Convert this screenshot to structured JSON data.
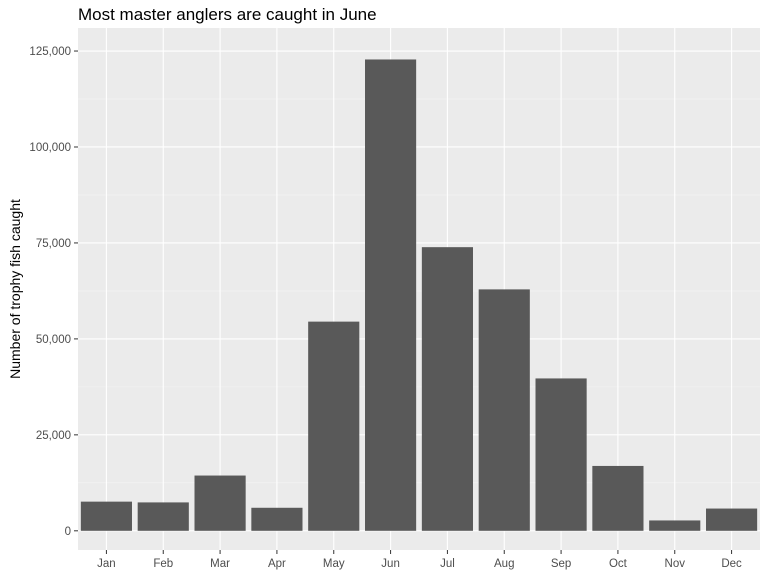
{
  "chart_data": {
    "type": "bar",
    "title": "Most master anglers are caught in June",
    "xlabel": "",
    "ylabel": "Number of trophy fish caught",
    "categories": [
      "Jan",
      "Feb",
      "Mar",
      "Apr",
      "May",
      "Jun",
      "Jul",
      "Aug",
      "Sep",
      "Oct",
      "Nov",
      "Dec"
    ],
    "values": [
      7600,
      7400,
      14400,
      6000,
      54500,
      122800,
      73900,
      62900,
      39700,
      16900,
      2700,
      5800
    ],
    "ylim": [
      -5000,
      131000
    ],
    "yticks": [
      0,
      25000,
      50000,
      75000,
      100000,
      125000
    ],
    "ytick_labels": [
      "0",
      "25,000",
      "50,000",
      "75,000",
      "100,000",
      "125,000"
    ],
    "grid": true,
    "legend": "none",
    "colors": {
      "bar": "#595959",
      "panel_background": "#ebebeb",
      "grid_major": "#ffffff",
      "grid_minor": "#f5f5f5"
    }
  }
}
